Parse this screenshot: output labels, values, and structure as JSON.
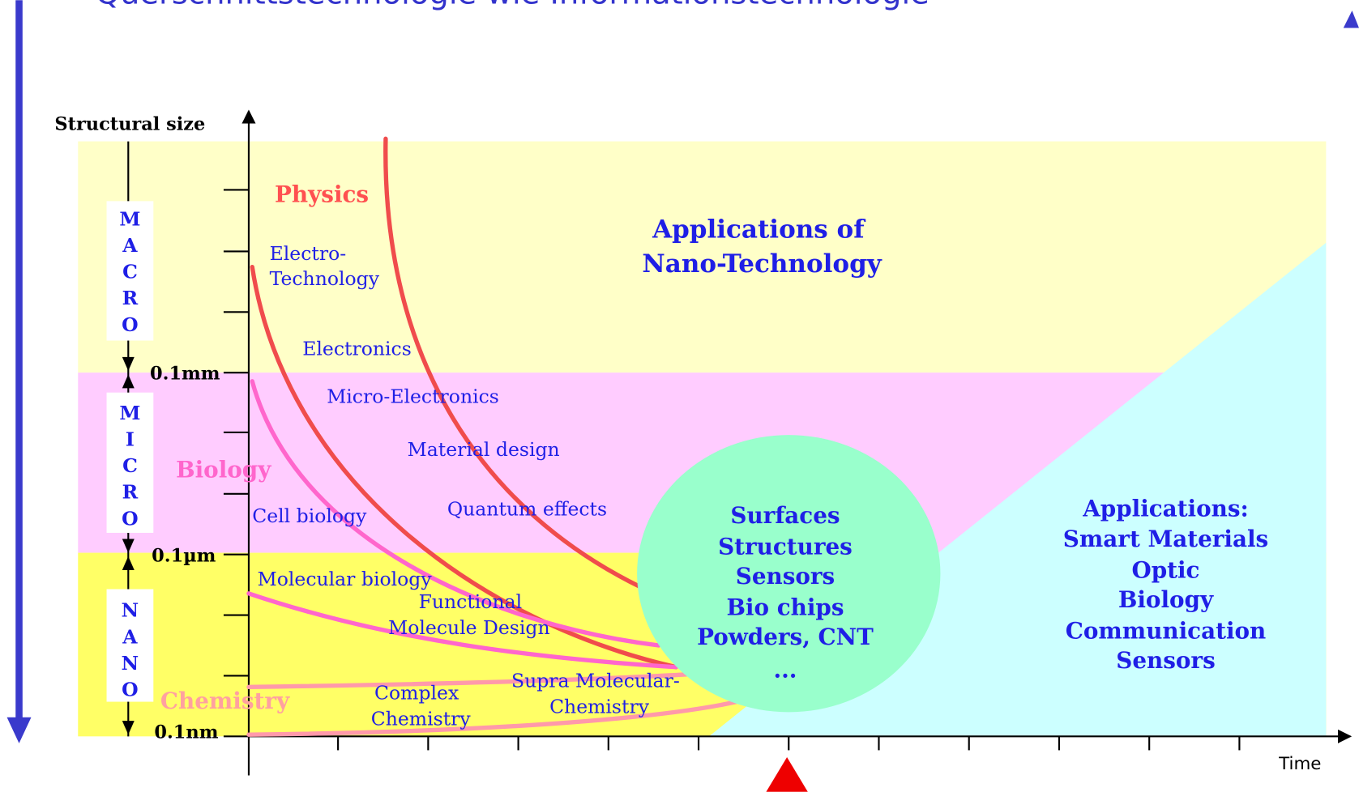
{
  "header": {
    "title": "Querschnittstechnologie wie Informationstechnologie"
  },
  "axis": {
    "y_label": "Structural size",
    "x_label": "Time"
  },
  "scales": [
    {
      "name": "MACRO",
      "limit": "0.1mm"
    },
    {
      "name": "MICRO",
      "limit": "0.1µm"
    },
    {
      "name": "NANO",
      "limit": "0.1nm"
    }
  ],
  "fields": {
    "physics": "Physics",
    "biology": "Biology",
    "chemistry": "Chemistry"
  },
  "topics": {
    "electro_technology": [
      "Electro-",
      "Technology"
    ],
    "electronics": "Electronics",
    "micro_electronics": "Micro-Electronics",
    "material_design": "Material design",
    "quantum_effects": "Quantum effects",
    "cell_biology": "Cell biology",
    "molecular_biology": "Molecular biology",
    "functional_molecule_design": [
      "Functional",
      "Molecule Design"
    ],
    "complex_chemistry": [
      "Complex",
      "Chemistry"
    ],
    "supra_molecular_chemistry": [
      "Supra Molecular-",
      "Chemistry"
    ]
  },
  "applications_nano": [
    "Applications of",
    "Nano-Technology"
  ],
  "center": [
    "Surfaces",
    "Structures",
    "Sensors",
    "Bio chips",
    "Powders, CNT",
    "..."
  ],
  "applications": [
    "Applications:",
    "Smart Materials",
    "Optic",
    "Biology",
    "Communication",
    "Sensors"
  ]
}
